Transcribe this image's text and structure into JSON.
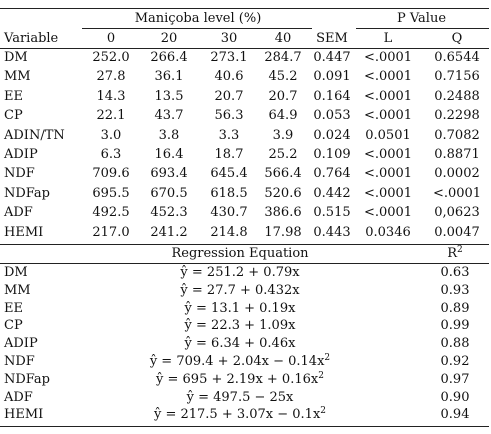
{
  "header": {
    "group_title": "Maniçoba level (%)",
    "pvalue_title": "P Value",
    "columns": [
      "Variable",
      "0",
      "20",
      "30",
      "40",
      "SEM",
      "L",
      "Q"
    ]
  },
  "rows": [
    {
      "variable": "DM",
      "v0": "252.0",
      "v20": "266.4",
      "v30": "273.1",
      "v40": "284.7",
      "sem": "0.447",
      "l": "<.0001",
      "q": "0.6544"
    },
    {
      "variable": "MM",
      "v0": "27.8",
      "v20": "36.1",
      "v30": "40.6",
      "v40": "45.2",
      "sem": "0.091",
      "l": "<.0001",
      "q": "0.7156"
    },
    {
      "variable": "EE",
      "v0": "14.3",
      "v20": "13.5",
      "v30": "20.7",
      "v40": "20.7",
      "sem": "0.164",
      "l": "<.0001",
      "q": "0.2488"
    },
    {
      "variable": "CP",
      "v0": "22.1",
      "v20": "43.7",
      "v30": "56.3",
      "v40": "64.9",
      "sem": "0.053",
      "l": "<.0001",
      "q": "0.2298"
    },
    {
      "variable": "ADIN/TN",
      "v0": "3.0",
      "v20": "3.8",
      "v30": "3.3",
      "v40": "3.9",
      "sem": "0.024",
      "l": "0.0501",
      "q": "0.7082"
    },
    {
      "variable": "ADIP",
      "v0": "6.3",
      "v20": "16.4",
      "v30": "18.7",
      "v40": "25.2",
      "sem": "0.109",
      "l": "<.0001",
      "q": "0.8871"
    },
    {
      "variable": "NDF",
      "v0": "709.6",
      "v20": "693.4",
      "v30": "645.4",
      "v40": "566.4",
      "sem": "0.764",
      "l": "<.0001",
      "q": "0.0002"
    },
    {
      "variable": "NDFap",
      "v0": "695.5",
      "v20": "670.5",
      "v30": "618.5",
      "v40": "520.6",
      "sem": "0.442",
      "l": "<.0001",
      "q": "<.0001"
    },
    {
      "variable": "ADF",
      "v0": "492.5",
      "v20": "452.3",
      "v30": "430.7",
      "v40": "386.6",
      "sem": "0.515",
      "l": "<.0001",
      "q": "0,0623"
    },
    {
      "variable": "HEMI",
      "v0": "217.0",
      "v20": "241.2",
      "v30": "214.8",
      "v40": "17.98",
      "sem": "0.443",
      "l": "0.0346",
      "q": "0.0047"
    }
  ],
  "regression": {
    "title": "Regression Equation",
    "r2_label": "R",
    "r2_sup": "2",
    "rows": [
      {
        "variable": "DM",
        "eq": "ŷ = 251.2 + 0.79x",
        "sup": "",
        "r2": "0.63"
      },
      {
        "variable": "MM",
        "eq": "ŷ = 27.7 + 0.432x",
        "sup": "",
        "r2": "0.93"
      },
      {
        "variable": "EE",
        "eq": "ŷ = 13.1 + 0.19x",
        "sup": "",
        "r2": "0.89"
      },
      {
        "variable": "CP",
        "eq": "ŷ = 22.3 + 1.09x",
        "sup": "",
        "r2": "0.99"
      },
      {
        "variable": "ADIP",
        "eq": "ŷ = 6.34 + 0.46x",
        "sup": "",
        "r2": "0.88"
      },
      {
        "variable": "NDF",
        "eq": "ŷ = 709.4 + 2.04x − 0.14x",
        "sup": "2",
        "r2": "0.92"
      },
      {
        "variable": "NDFap",
        "eq": "ŷ = 695 + 2.19x + 0.16x",
        "sup": "2",
        "r2": "0.97"
      },
      {
        "variable": "ADF",
        "eq": "ŷ = 497.5 − 25x",
        "sup": "",
        "r2": "0.90"
      },
      {
        "variable": "HEMI",
        "eq": "ŷ = 217.5 + 3.07x − 0.1x",
        "sup": "2",
        "r2": "0.94"
      }
    ]
  }
}
